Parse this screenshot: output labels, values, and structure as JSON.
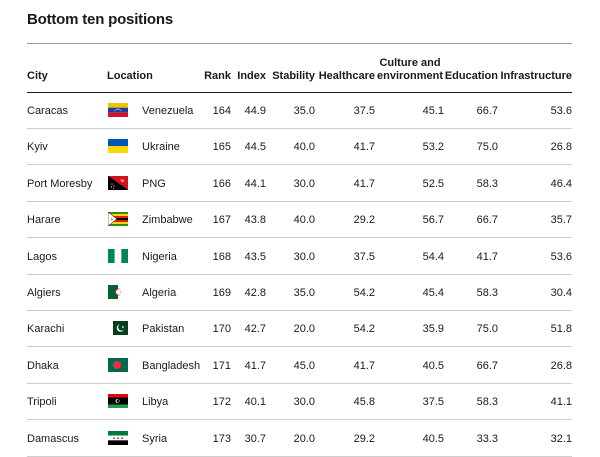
{
  "title": "Bottom ten positions",
  "headers": {
    "city": "City",
    "location": "Location",
    "rank": "Rank",
    "index": "Index",
    "stability": "Stability",
    "healthcare": "Healthcare",
    "culture_line1": "Culture and",
    "culture_line2": "environment",
    "education": "Education",
    "infrastructure": "Infrastructure"
  },
  "rows": [
    {
      "city": "Caracas",
      "location": "Venezuela",
      "flag": "venezuela-flag",
      "rank": "164",
      "index": "44.9",
      "stability": "35.0",
      "healthcare": "37.5",
      "culture": "45.1",
      "education": "66.7",
      "infrastructure": "53.6"
    },
    {
      "city": "Kyiv",
      "location": "Ukraine",
      "flag": "ukraine-flag",
      "rank": "165",
      "index": "44.5",
      "stability": "40.0",
      "healthcare": "41.7",
      "culture": "53.2",
      "education": "75.0",
      "infrastructure": "26.8"
    },
    {
      "city": "Port Moresby",
      "location": "PNG",
      "flag": "png-flag",
      "rank": "166",
      "index": "44.1",
      "stability": "30.0",
      "healthcare": "41.7",
      "culture": "52.5",
      "education": "58.3",
      "infrastructure": "46.4"
    },
    {
      "city": "Harare",
      "location": "Zimbabwe",
      "flag": "zimbabwe-flag",
      "rank": "167",
      "index": "43.8",
      "stability": "40.0",
      "healthcare": "29.2",
      "culture": "56.7",
      "education": "66.7",
      "infrastructure": "35.7"
    },
    {
      "city": "Lagos",
      "location": "Nigeria",
      "flag": "nigeria-flag",
      "rank": "168",
      "index": "43.5",
      "stability": "30.0",
      "healthcare": "37.5",
      "culture": "54.4",
      "education": "41.7",
      "infrastructure": "53.6"
    },
    {
      "city": "Algiers",
      "location": "Algeria",
      "flag": "algeria-flag",
      "rank": "169",
      "index": "42.8",
      "stability": "35.0",
      "healthcare": "54.2",
      "culture": "45.4",
      "education": "58.3",
      "infrastructure": "30.4"
    },
    {
      "city": "Karachi",
      "location": "Pakistan",
      "flag": "pakistan-flag",
      "rank": "170",
      "index": "42.7",
      "stability": "20.0",
      "healthcare": "54.2",
      "culture": "35.9",
      "education": "75.0",
      "infrastructure": "51.8"
    },
    {
      "city": "Dhaka",
      "location": "Bangladesh",
      "flag": "bangladesh-flag",
      "rank": "171",
      "index": "41.7",
      "stability": "45.0",
      "healthcare": "41.7",
      "culture": "40.5",
      "education": "66.7",
      "infrastructure": "26.8"
    },
    {
      "city": "Tripoli",
      "location": "Libya",
      "flag": "libya-flag",
      "rank": "172",
      "index": "40.1",
      "stability": "30.0",
      "healthcare": "45.8",
      "culture": "37.5",
      "education": "58.3",
      "infrastructure": "41.1"
    },
    {
      "city": "Damascus",
      "location": "Syria",
      "flag": "syria-flag",
      "rank": "173",
      "index": "30.7",
      "stability": "20.0",
      "healthcare": "29.2",
      "culture": "40.5",
      "education": "33.3",
      "infrastructure": "32.1"
    }
  ]
}
